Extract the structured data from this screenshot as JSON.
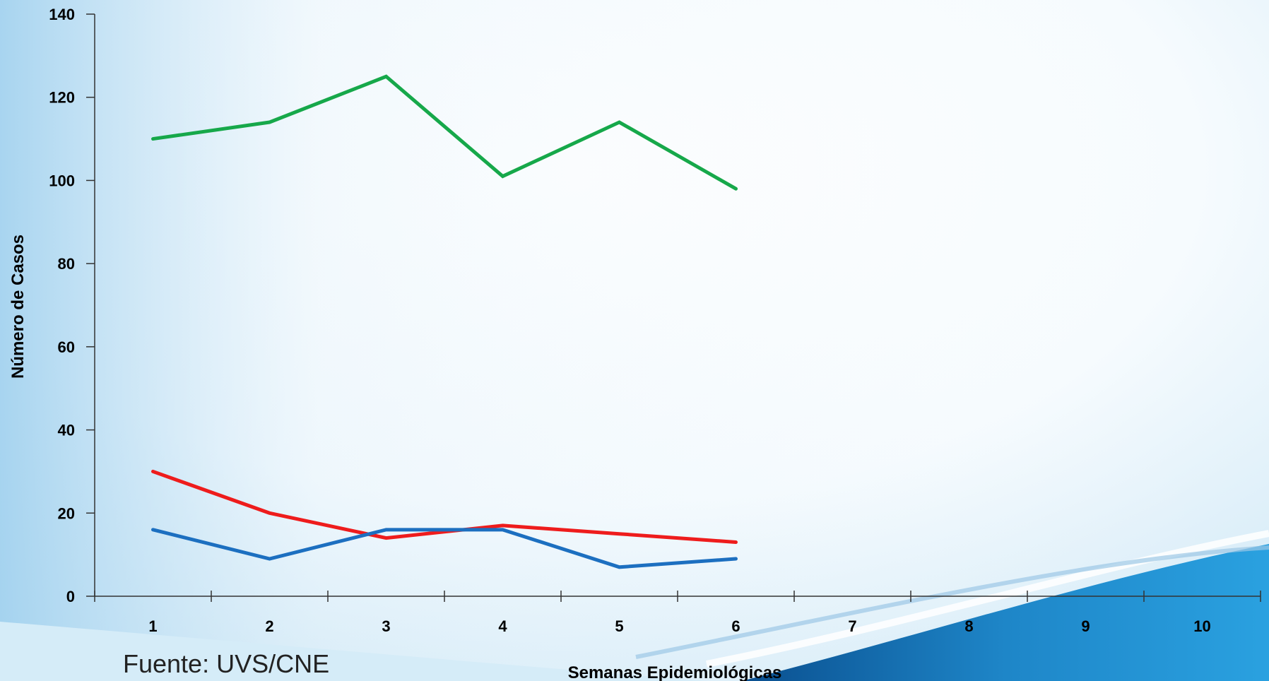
{
  "colors": {
    "series_green": "#16a84a",
    "series_red": "#ee1c1c",
    "series_blue": "#1c6fc0"
  },
  "source_note": "Fuente: UVS/CNE",
  "chart_data": {
    "type": "line",
    "xlabel": "Semanas Epidemiológicas",
    "ylabel": "Número de Casos",
    "x": [
      1,
      2,
      3,
      4,
      5,
      6,
      7,
      8,
      9,
      10
    ],
    "ylim": [
      0,
      140
    ],
    "yticks": [
      0,
      20,
      40,
      60,
      80,
      100,
      120,
      140
    ],
    "grid": false,
    "series": [
      {
        "color": "#16a84a",
        "x": [
          1,
          2,
          3,
          4,
          5,
          6
        ],
        "values": [
          110,
          114,
          125,
          101,
          114,
          98
        ]
      },
      {
        "color": "#ee1c1c",
        "x": [
          1,
          2,
          3,
          4,
          5,
          6
        ],
        "values": [
          30,
          20,
          14,
          17,
          15,
          13
        ]
      },
      {
        "color": "#1c6fc0",
        "x": [
          1,
          2,
          3,
          4,
          5,
          6
        ],
        "values": [
          16,
          9,
          16,
          16,
          7,
          9
        ]
      }
    ]
  }
}
